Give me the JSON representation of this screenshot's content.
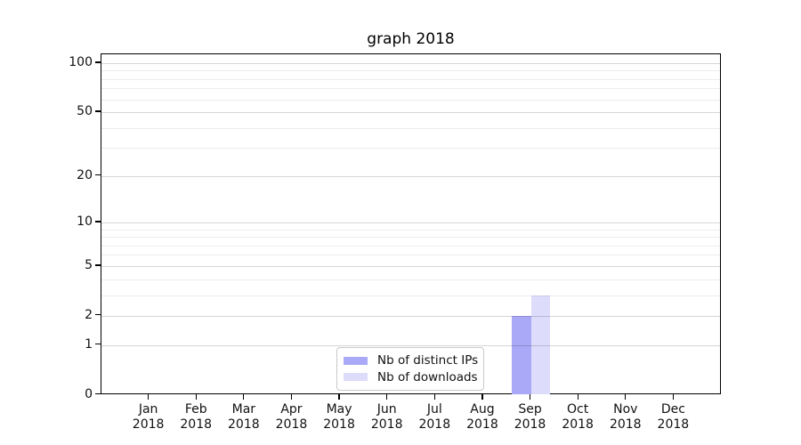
{
  "title": "graph 2018",
  "chart_data": {
    "type": "bar",
    "title": "graph 2018",
    "categories": [
      "Jan 2018",
      "Feb 2018",
      "Mar 2018",
      "Apr 2018",
      "May 2018",
      "Jun 2018",
      "Jul 2018",
      "Aug 2018",
      "Sep 2018",
      "Oct 2018",
      "Nov 2018",
      "Dec 2018"
    ],
    "series": [
      {
        "name": "Nb of distinct IPs",
        "color": "#a9a9f7",
        "values": [
          0,
          0,
          0,
          0,
          0,
          0,
          0,
          0,
          2,
          0,
          0,
          0
        ]
      },
      {
        "name": "Nb of downloads",
        "color": "#dddcfa",
        "values": [
          0,
          0,
          0,
          0,
          0,
          0,
          0,
          0,
          3,
          0,
          0,
          0
        ]
      }
    ],
    "xlabel": "",
    "ylabel": "",
    "y_scale": "log1p",
    "ylim": [
      0,
      114
    ],
    "y_major_ticks": [
      0,
      1,
      2,
      5,
      10,
      20,
      50,
      100
    ],
    "y_minor_ticks": [
      3,
      4,
      6,
      7,
      8,
      9,
      30,
      40,
      60,
      70,
      80,
      90
    ],
    "grid": "horizontal",
    "legend_position": "lower-center"
  },
  "colors": {
    "grid_major": "rgba(0,0,0,0.16)",
    "grid_minor": "rgba(0,0,0,0.075)",
    "spine": "#000000",
    "text": "#111111",
    "background": "#ffffff"
  }
}
